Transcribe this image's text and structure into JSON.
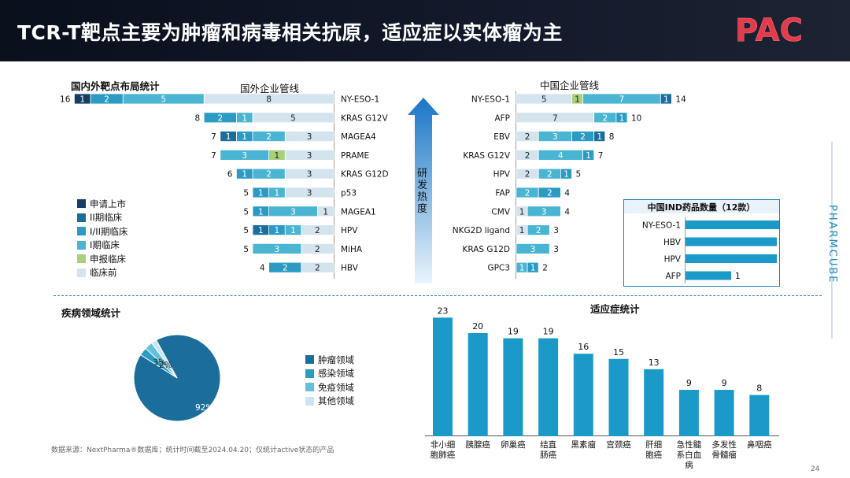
{
  "header": {
    "title": "TCR-T靶点主要为肿瘤和病毒相关抗原，适应症以实体瘤为主"
  },
  "sections": {
    "target_stats": "国内外靶点布局统计",
    "foreign": "国外企业管线",
    "china": "中国企业管线",
    "disease": "疾病领域统计",
    "indication": "适应症统计",
    "arrow_text": "研发热度"
  },
  "legend": [
    {
      "label": "申请上市",
      "color": "#123f63"
    },
    {
      "label": "II期临床",
      "color": "#1b6e9c"
    },
    {
      "label": "I/II期临床",
      "color": "#2b9bc3"
    },
    {
      "label": "I期临床",
      "color": "#49b5d2"
    },
    {
      "label": "申报临床",
      "color": "#a8cf7a"
    },
    {
      "label": "临床前",
      "color": "#d3e4ef"
    }
  ],
  "chart_data": [
    {
      "type": "bar",
      "title": "国外企业管线",
      "orientation": "horizontal",
      "stacked": true,
      "direction": "right-to-left",
      "stages": [
        "申请上市",
        "II期临床",
        "I/II期临床",
        "I期临床",
        "申报临床",
        "临床前"
      ],
      "rows": [
        {
          "label": "NY-ESO-1",
          "total": 16,
          "segments": [
            1,
            0,
            2,
            5,
            0,
            8
          ]
        },
        {
          "label": "KRAS G12V",
          "total": 8,
          "segments": [
            0,
            0,
            2,
            1,
            0,
            5
          ]
        },
        {
          "label": "MAGEA4",
          "total": 7,
          "segments": [
            0,
            1,
            1,
            2,
            0,
            3
          ]
        },
        {
          "label": "PRAME",
          "total": 7,
          "segments": [
            0,
            0,
            0,
            3,
            1,
            3
          ]
        },
        {
          "label": "KRAS G12D",
          "total": 6,
          "segments": [
            0,
            0,
            1,
            2,
            0,
            3
          ]
        },
        {
          "label": "p53",
          "total": 5,
          "segments": [
            0,
            0,
            1,
            1,
            0,
            3
          ]
        },
        {
          "label": "MAGEA1",
          "total": 5,
          "segments": [
            0,
            0,
            1,
            3,
            0,
            1
          ]
        },
        {
          "label": "HPV",
          "total": 5,
          "segments": [
            0,
            1,
            1,
            1,
            0,
            2
          ]
        },
        {
          "label": "MiHA",
          "total": 5,
          "segments": [
            0,
            0,
            0,
            3,
            0,
            2
          ]
        },
        {
          "label": "HBV",
          "total": 4,
          "segments": [
            0,
            0,
            2,
            0,
            0,
            2
          ]
        }
      ]
    },
    {
      "type": "bar",
      "title": "中国企业管线",
      "orientation": "horizontal",
      "stacked": true,
      "stages": [
        "临床前",
        "申报临床",
        "I期临床",
        "I/II期临床",
        "II期临床"
      ],
      "rows": [
        {
          "label": "NY-ESO-1",
          "total": 14,
          "segments": [
            5,
            1,
            7,
            0,
            1
          ]
        },
        {
          "label": "AFP",
          "total": 10,
          "segments": [
            7,
            0,
            2,
            1,
            0
          ]
        },
        {
          "label": "EBV",
          "total": 8,
          "segments": [
            2,
            0,
            3,
            2,
            1
          ]
        },
        {
          "label": "KRAS G12V",
          "total": 7,
          "segments": [
            2,
            0,
            4,
            1,
            0
          ]
        },
        {
          "label": "HPV",
          "total": 5,
          "segments": [
            2,
            0,
            2,
            1,
            0
          ]
        },
        {
          "label": "FAP",
          "total": 4,
          "segments": [
            0,
            0,
            2,
            2,
            0
          ]
        },
        {
          "label": "CMV",
          "total": 4,
          "segments": [
            1,
            0,
            3,
            0,
            0
          ]
        },
        {
          "label": "NKG2D ligand",
          "total": 3,
          "segments": [
            1,
            0,
            2,
            0,
            0
          ]
        },
        {
          "label": "KRAS G12D",
          "total": 3,
          "segments": [
            0,
            0,
            3,
            0,
            0
          ]
        },
        {
          "label": "GPC3",
          "total": 2,
          "segments": [
            0,
            0,
            1,
            1,
            0
          ]
        }
      ]
    },
    {
      "type": "bar",
      "title": "中国IND药品数量（12款）",
      "orientation": "horizontal",
      "categories": [
        "NY-ESO-1",
        "HBV",
        "HPV",
        "AFP"
      ],
      "values": [
        3,
        2,
        2,
        1
      ]
    },
    {
      "type": "pie",
      "title": "疾病领域统计",
      "labels": [
        "肿瘤领域",
        "感染领域",
        "免疫领域",
        "其他领域"
      ],
      "values": [
        92,
        3,
        3,
        2
      ],
      "value_labels": [
        "92%",
        "",
        "3%",
        "2%"
      ],
      "colors": [
        "#1b6e9c",
        "#2b9bc3",
        "#63bfdb",
        "#c9e6f2"
      ],
      "legend": "right"
    },
    {
      "type": "bar",
      "title": "适应症统计",
      "categories": [
        "非小细胞肺癌",
        "胰腺癌",
        "卵巢癌",
        "结直肠癌",
        "黑素瘤",
        "宫颈癌",
        "肝细胞癌",
        "急性髓系白血病",
        "多发性骨髓瘤",
        "鼻咽癌"
      ],
      "category_lines": [
        [
          "非小细",
          "胞肺癌"
        ],
        [
          "胰腺癌"
        ],
        [
          "卵巢癌"
        ],
        [
          "结直",
          "肠癌"
        ],
        [
          "黑素瘤"
        ],
        [
          "宫颈癌"
        ],
        [
          "肝细",
          "胞癌"
        ],
        [
          "急性髓",
          "系白血",
          "病"
        ],
        [
          "多发性",
          "骨髓瘤"
        ],
        [
          "鼻咽癌"
        ]
      ],
      "values": [
        23,
        20,
        19,
        19,
        16,
        15,
        13,
        9,
        9,
        8
      ],
      "color": "#1b9ac9"
    }
  ],
  "footer": {
    "source": "数据来源：NextPharma®数据库；统计时间截至2024.04.20；仅统计active状态的产品",
    "page": "24"
  },
  "brand": {
    "text": "PHARMCUBE",
    "logo": "PAC"
  }
}
